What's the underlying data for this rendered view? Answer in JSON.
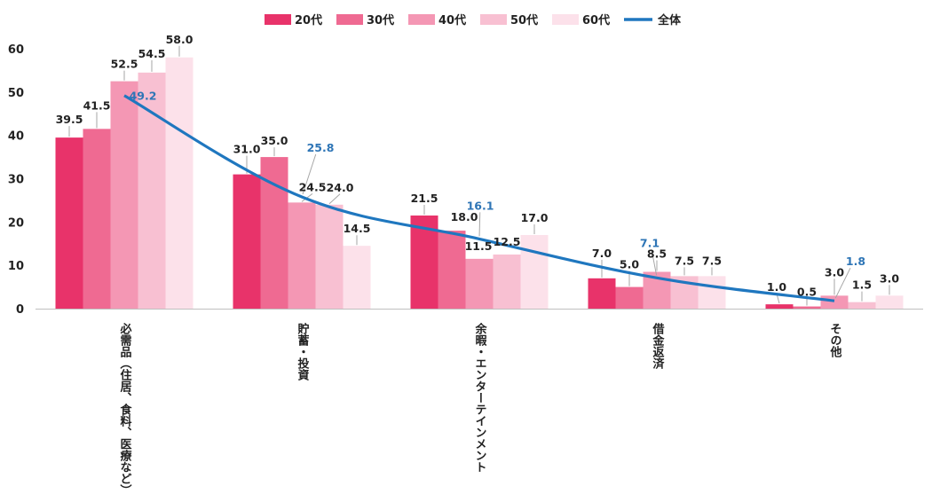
{
  "chart_data": {
    "type": "bar",
    "categories": [
      "必需品（住居、食料、医療など）",
      "貯蓄・投資",
      "余暇・エンターテインメント",
      "借金返済",
      "その他"
    ],
    "series": [
      {
        "name": "20代",
        "values": [
          39.5,
          31.0,
          21.5,
          7.0,
          1.0
        ],
        "color": "#E8336A"
      },
      {
        "name": "30代",
        "values": [
          41.5,
          35.0,
          18.0,
          5.0,
          0.5
        ],
        "color": "#EF6A92"
      },
      {
        "name": "40代",
        "values": [
          52.5,
          24.5,
          11.5,
          8.5,
          3.0
        ],
        "color": "#F497B4"
      },
      {
        "name": "50代",
        "values": [
          54.5,
          24.0,
          12.5,
          7.5,
          1.5
        ],
        "color": "#F8C0D2"
      },
      {
        "name": "60代",
        "values": [
          58.0,
          14.5,
          17.0,
          7.5,
          3.0
        ],
        "color": "#FCE1EA"
      }
    ],
    "line_series": {
      "name": "全体",
      "values": [
        49.2,
        25.8,
        16.1,
        7.1,
        1.8
      ],
      "color": "#1F77BF"
    },
    "ylim": [
      0,
      60
    ],
    "yticks": [
      0,
      10,
      20,
      30,
      40,
      50,
      60
    ],
    "legend": "top",
    "grid": false,
    "title": "",
    "xlabel": "",
    "ylabel": ""
  }
}
